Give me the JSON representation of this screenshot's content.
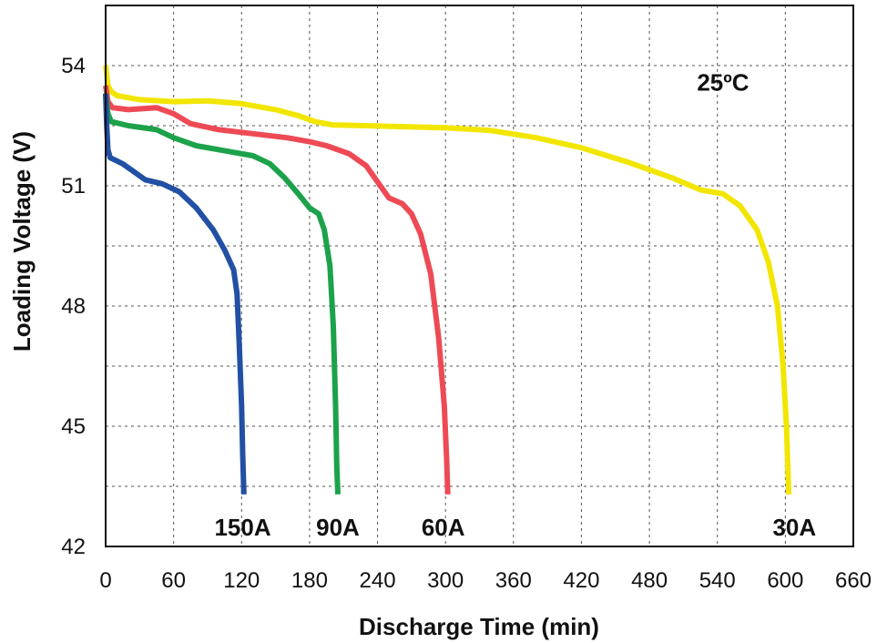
{
  "chart_data": {
    "type": "line",
    "title": "",
    "xlabel": "Discharge Time (min)",
    "ylabel": "Loading Voltage (V)",
    "xlim": [
      0,
      660
    ],
    "ylim": [
      42,
      55.5
    ],
    "x_ticks": [
      0,
      60,
      120,
      180,
      240,
      300,
      360,
      420,
      480,
      540,
      600,
      660
    ],
    "x_tick_labels": [
      "0",
      "60",
      "120",
      "180",
      "240",
      "300",
      "360",
      "420",
      "480",
      "540",
      "600",
      "660"
    ],
    "y_ticks": [
      42,
      45,
      48,
      51,
      54
    ],
    "y_tick_labels": [
      "42",
      "45",
      "48",
      "51",
      "54"
    ],
    "y_minor_grid": [
      43.5,
      46.5,
      49.5,
      52.5
    ],
    "grid": true,
    "annotations": [
      {
        "text": "25ºC",
        "x": 545,
        "y": 53.6
      }
    ],
    "series": [
      {
        "name": "30A",
        "color": "#f2e600",
        "label_pos": {
          "x": 608,
          "y": 42.5
        },
        "points": [
          [
            0,
            54.0
          ],
          [
            2,
            53.5
          ],
          [
            5,
            53.35
          ],
          [
            10,
            53.25
          ],
          [
            30,
            53.15
          ],
          [
            60,
            53.1
          ],
          [
            90,
            53.12
          ],
          [
            120,
            53.05
          ],
          [
            150,
            52.9
          ],
          [
            170,
            52.75
          ],
          [
            185,
            52.6
          ],
          [
            200,
            52.52
          ],
          [
            240,
            52.49
          ],
          [
            300,
            52.45
          ],
          [
            340,
            52.38
          ],
          [
            380,
            52.2
          ],
          [
            420,
            51.95
          ],
          [
            460,
            51.6
          ],
          [
            500,
            51.2
          ],
          [
            525,
            50.9
          ],
          [
            545,
            50.8
          ],
          [
            560,
            50.5
          ],
          [
            575,
            49.9
          ],
          [
            585,
            49.1
          ],
          [
            593,
            48.0
          ],
          [
            598,
            46.5
          ],
          [
            601,
            45.0
          ],
          [
            603,
            43.3
          ]
        ]
      },
      {
        "name": "60A",
        "color": "#ee4a55",
        "label_pos": {
          "x": 298,
          "y": 42.5
        },
        "points": [
          [
            0,
            53.5
          ],
          [
            2,
            53.1
          ],
          [
            6,
            52.95
          ],
          [
            20,
            52.9
          ],
          [
            45,
            52.95
          ],
          [
            60,
            52.8
          ],
          [
            75,
            52.55
          ],
          [
            100,
            52.4
          ],
          [
            130,
            52.3
          ],
          [
            160,
            52.2
          ],
          [
            180,
            52.1
          ],
          [
            195,
            52.0
          ],
          [
            215,
            51.8
          ],
          [
            230,
            51.5
          ],
          [
            240,
            51.1
          ],
          [
            250,
            50.7
          ],
          [
            262,
            50.55
          ],
          [
            270,
            50.3
          ],
          [
            278,
            49.8
          ],
          [
            287,
            48.8
          ],
          [
            294,
            47.2
          ],
          [
            299,
            45.5
          ],
          [
            301,
            44.2
          ],
          [
            302,
            43.3
          ]
        ]
      },
      {
        "name": "90A",
        "color": "#1ca24a",
        "label_pos": {
          "x": 205,
          "y": 42.5
        },
        "points": [
          [
            0,
            53.3
          ],
          [
            2,
            52.8
          ],
          [
            5,
            52.6
          ],
          [
            20,
            52.5
          ],
          [
            45,
            52.4
          ],
          [
            60,
            52.2
          ],
          [
            80,
            52.0
          ],
          [
            110,
            51.85
          ],
          [
            130,
            51.75
          ],
          [
            145,
            51.55
          ],
          [
            158,
            51.2
          ],
          [
            170,
            50.8
          ],
          [
            180,
            50.45
          ],
          [
            188,
            50.3
          ],
          [
            193,
            49.9
          ],
          [
            198,
            49.0
          ],
          [
            201,
            47.5
          ],
          [
            203,
            45.5
          ],
          [
            204,
            44.0
          ],
          [
            205,
            43.3
          ]
        ]
      },
      {
        "name": "150A",
        "color": "#2150a4",
        "label_pos": {
          "x": 121,
          "y": 42.5
        },
        "points": [
          [
            0,
            53.3
          ],
          [
            1,
            52.5
          ],
          [
            2,
            51.9
          ],
          [
            4,
            51.7
          ],
          [
            15,
            51.55
          ],
          [
            25,
            51.35
          ],
          [
            35,
            51.15
          ],
          [
            50,
            51.05
          ],
          [
            65,
            50.85
          ],
          [
            80,
            50.45
          ],
          [
            95,
            49.9
          ],
          [
            105,
            49.4
          ],
          [
            113,
            48.9
          ],
          [
            116,
            48.3
          ],
          [
            118,
            47.0
          ],
          [
            120,
            45.5
          ],
          [
            121,
            44.3
          ],
          [
            122,
            43.3
          ]
        ]
      }
    ]
  }
}
